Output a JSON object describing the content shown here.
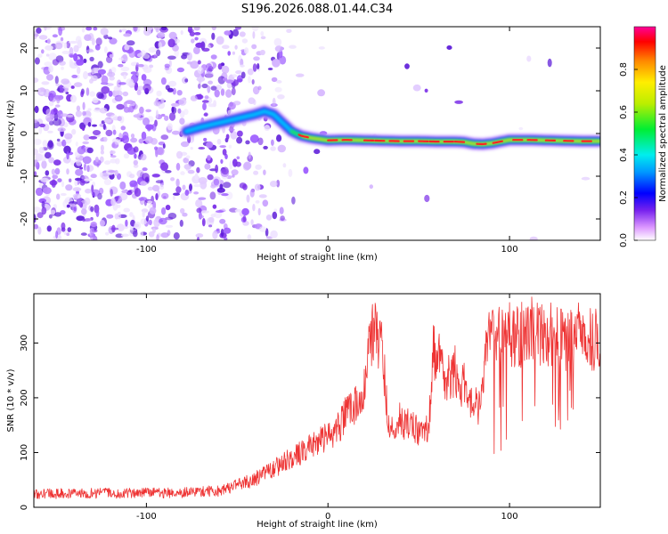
{
  "chart_data": [
    {
      "type": "heatmap",
      "title": "S196.2026.088.01.44.C34",
      "xlabel": "Height of straight line (km)",
      "ylabel": "Frequency (Hz)",
      "xlim": [
        -162,
        150
      ],
      "ylim": [
        -25,
        25
      ],
      "x_ticks": [
        -100,
        0,
        100
      ],
      "y_ticks": [
        -20,
        -10,
        0,
        10,
        20
      ],
      "x_tick_labels": [
        "-100",
        "0",
        "100"
      ],
      "y_tick_labels": [
        "-20",
        "-10",
        "0",
        "10",
        "20"
      ],
      "colorbar": {
        "label": "Normalized spectral amplitude",
        "range": [
          0,
          1
        ],
        "ticks": [
          0.0,
          0.2,
          0.4,
          0.6,
          0.8
        ],
        "tick_labels": [
          "0.0",
          "0.2",
          "0.4",
          "0.6",
          "0.8"
        ]
      },
      "ridge": {
        "x": [
          -78,
          -70,
          -60,
          -50,
          -40,
          -35,
          -30,
          -25,
          -20,
          -15,
          -10,
          0,
          10,
          20,
          30,
          40,
          50,
          60,
          70,
          75,
          80,
          85,
          90,
          100,
          110,
          120,
          130,
          140,
          150
        ],
        "freq": [
          0.5,
          1.5,
          2.5,
          3.5,
          4.5,
          5.2,
          4.5,
          2.5,
          0.5,
          -0.5,
          -1.0,
          -1.6,
          -1.5,
          -1.6,
          -1.7,
          -1.8,
          -1.8,
          -1.9,
          -1.9,
          -2.0,
          -2.4,
          -2.5,
          -2.3,
          -1.5,
          -1.5,
          -1.6,
          -1.7,
          -1.8,
          -1.8
        ]
      }
    },
    {
      "type": "line",
      "xlabel": "Height of straight line (km)",
      "ylabel": "SNR (10 * v/v)",
      "xlim": [
        -162,
        150
      ],
      "ylim": [
        0,
        390
      ],
      "x_ticks": [
        -100,
        0,
        100
      ],
      "y_ticks": [
        0,
        100,
        200,
        300
      ],
      "x_tick_labels": [
        "-100",
        "0",
        "100"
      ],
      "y_tick_labels": [
        "0",
        "100",
        "200",
        "300"
      ],
      "color": "#ee3333",
      "series": [
        {
          "name": "SNR",
          "x": [
            -162,
            -140,
            -120,
            -100,
            -80,
            -60,
            -45,
            -35,
            -25,
            -15,
            -5,
            5,
            10,
            15,
            20,
            22,
            25,
            28,
            30,
            33,
            35,
            38,
            40,
            42,
            45,
            50,
            55,
            57,
            58,
            60,
            62,
            65,
            68,
            70,
            72,
            75,
            78,
            80,
            82,
            85,
            88,
            90,
            92,
            95,
            100,
            105,
            110,
            115,
            120,
            125,
            130,
            135,
            140,
            145,
            150
          ],
          "values": [
            25,
            25,
            26,
            26,
            27,
            30,
            45,
            60,
            80,
            100,
            120,
            140,
            170,
            190,
            220,
            280,
            320,
            300,
            290,
            160,
            140,
            160,
            170,
            150,
            150,
            140,
            150,
            200,
            280,
            280,
            260,
            240,
            230,
            250,
            210,
            220,
            200,
            190,
            180,
            200,
            310,
            320,
            300,
            310,
            320,
            310,
            330,
            320,
            310,
            320,
            300,
            310,
            320,
            310,
            300
          ]
        }
      ]
    }
  ]
}
